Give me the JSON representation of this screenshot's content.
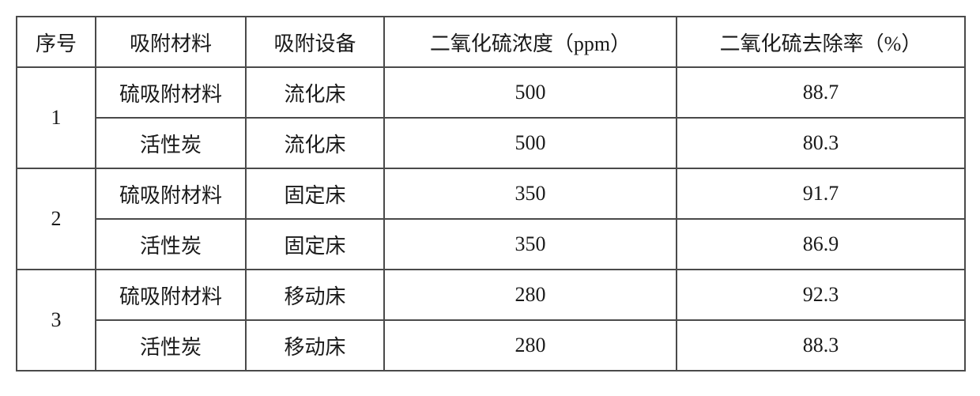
{
  "columns": {
    "idx": "序号",
    "mat": "吸附材料",
    "eq": "吸附设备",
    "conc": "二氧化硫浓度（ppm）",
    "rate": "二氧化硫去除率（%）"
  },
  "groups": [
    {
      "idx": "1",
      "rows": [
        {
          "mat": "硫吸附材料",
          "eq": "流化床",
          "conc": "500",
          "rate": "88.7"
        },
        {
          "mat": "活性炭",
          "eq": "流化床",
          "conc": "500",
          "rate": "80.3"
        }
      ]
    },
    {
      "idx": "2",
      "rows": [
        {
          "mat": "硫吸附材料",
          "eq": "固定床",
          "conc": "350",
          "rate": "91.7"
        },
        {
          "mat": "活性炭",
          "eq": "固定床",
          "conc": "350",
          "rate": "86.9"
        }
      ]
    },
    {
      "idx": "3",
      "rows": [
        {
          "mat": "硫吸附材料",
          "eq": "移动床",
          "conc": "280",
          "rate": "92.3"
        },
        {
          "mat": "活性炭",
          "eq": "移动床",
          "conc": "280",
          "rate": "88.3"
        }
      ]
    }
  ]
}
